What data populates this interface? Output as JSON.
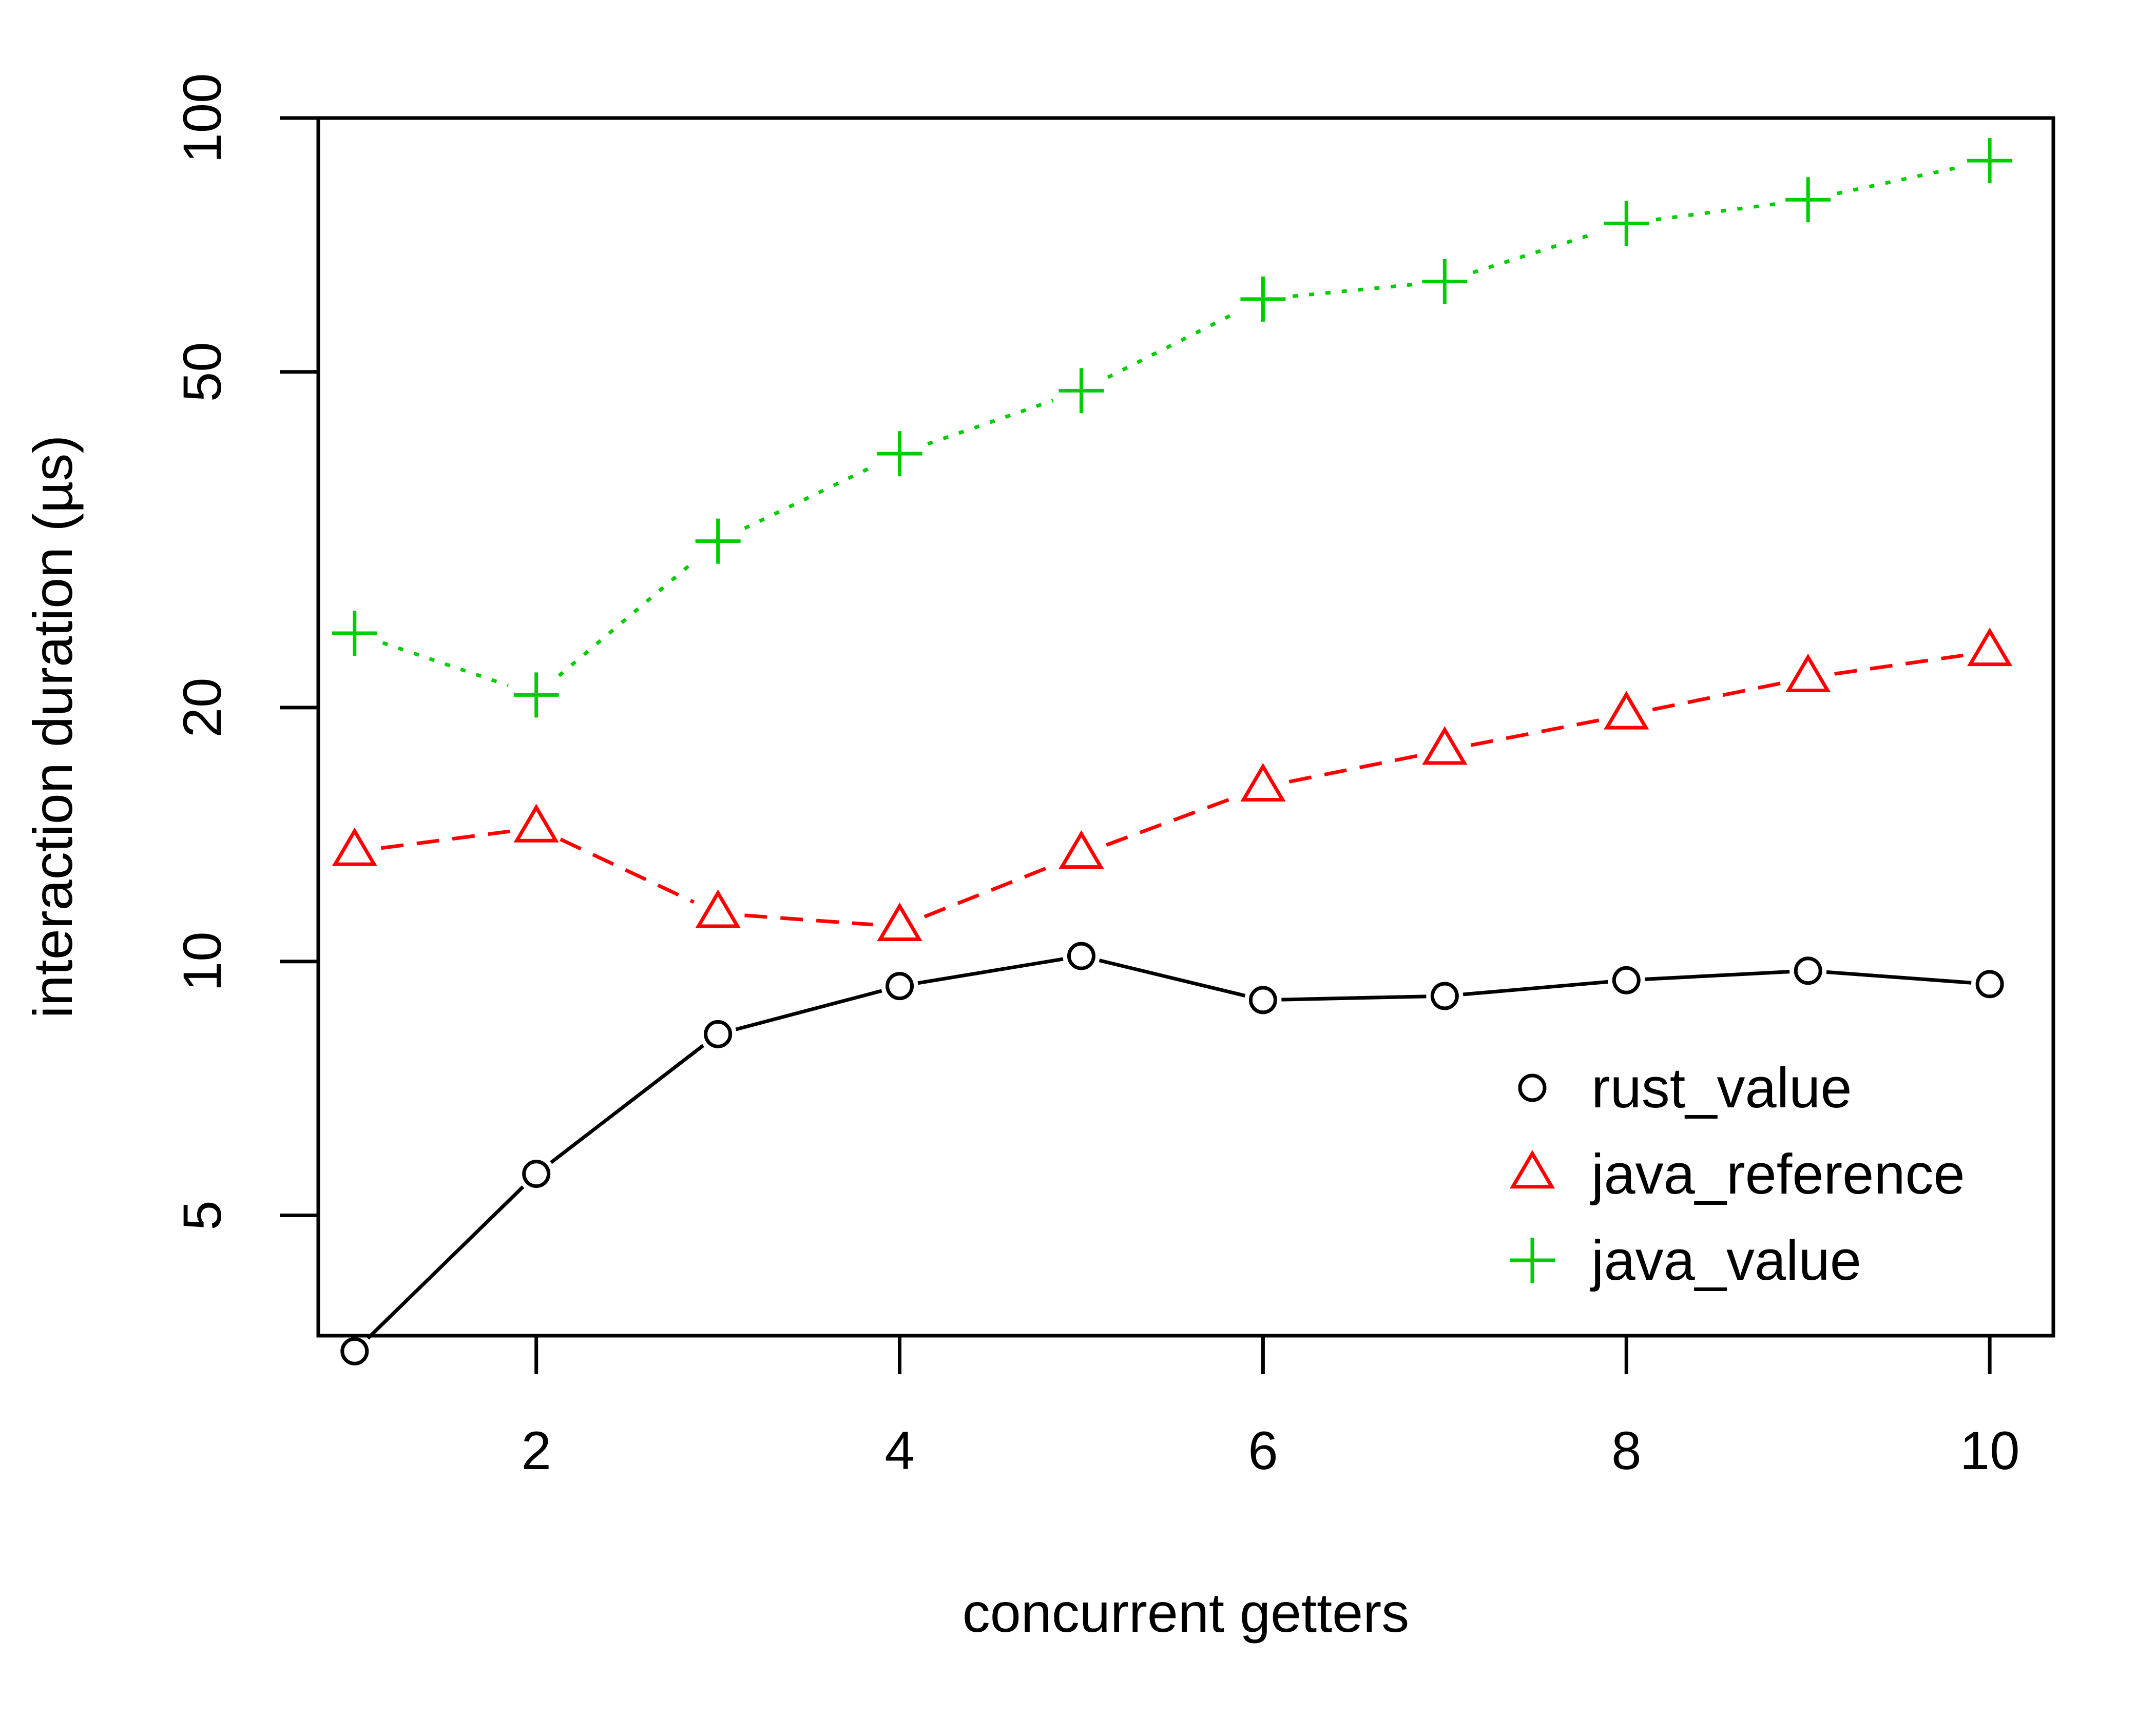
{
  "chart_data": {
    "type": "line",
    "title": "",
    "xlabel": "concurrent getters",
    "ylabel": "interaction duration (µs)",
    "x": [
      1,
      2,
      3,
      4,
      5,
      6,
      7,
      8,
      9,
      10
    ],
    "xlim": [
      0.8,
      10.35
    ],
    "ylim": [
      3.6,
      100
    ],
    "y_scale": "log",
    "xticks": [
      2,
      4,
      6,
      8,
      10
    ],
    "yticks": [
      5,
      10,
      20,
      50,
      100
    ],
    "grid": false,
    "legend_position": "bottom-right",
    "series": [
      {
        "name": "rust_value",
        "marker": "circle",
        "line_style": "solid",
        "color": "#000000",
        "values": [
          3.45,
          5.6,
          8.2,
          9.35,
          10.15,
          9.0,
          9.1,
          9.5,
          9.75,
          9.4
        ]
      },
      {
        "name": "java_reference",
        "marker": "triangle",
        "line_style": "dashed",
        "color": "#ff0000",
        "values": [
          13.5,
          14.4,
          11.4,
          11.0,
          13.4,
          16.1,
          17.8,
          19.6,
          21.7,
          23.3
        ]
      },
      {
        "name": "java_value",
        "marker": "plus",
        "line_style": "dotted",
        "color": "#00cd00",
        "values": [
          24.5,
          20.7,
          31.5,
          40.0,
          47.5,
          61.0,
          64.0,
          75.0,
          80.0,
          89.0
        ]
      }
    ]
  }
}
